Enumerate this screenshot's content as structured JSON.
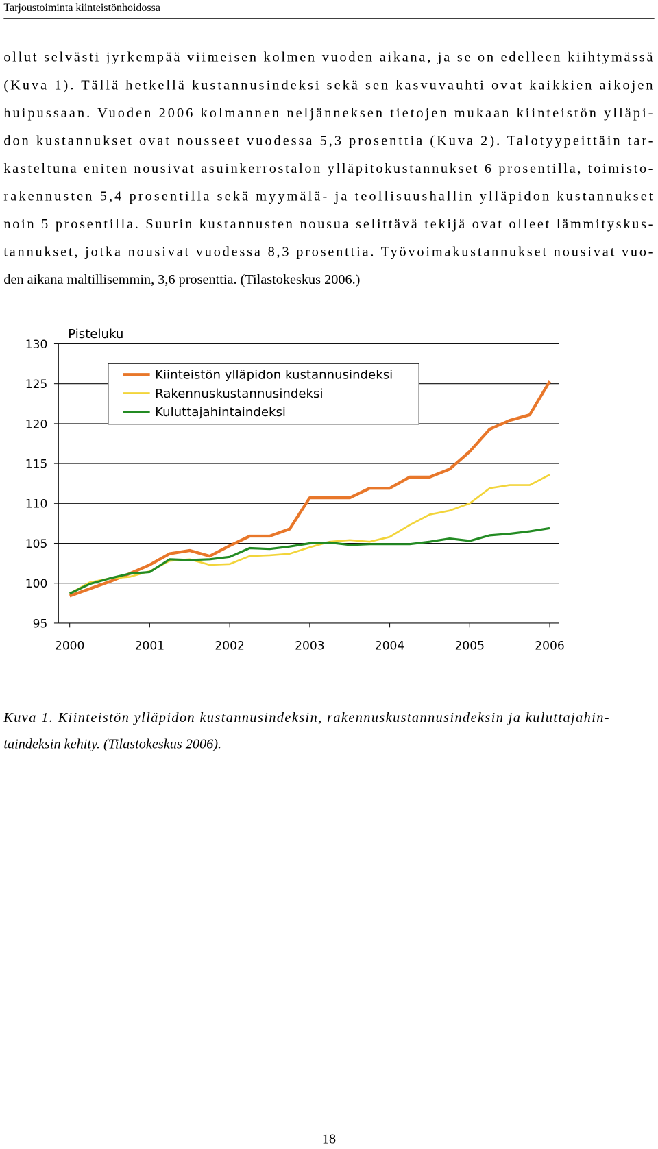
{
  "header": "Tarjoustoiminta kiinteistönhoidossa",
  "paragraph": [
    "ollut selvästi jyrkempää viimeisen kolmen vuoden aikana, ja se on edelleen kiihtymässä",
    "(Kuva 1). Tällä hetkellä kustannusindeksi sekä sen kasvuvauhti ovat kaikkien aikojen",
    "huipussaan. Vuoden 2006 kolmannen neljänneksen tietojen mukaan kiinteistön ylläpi-",
    "don kustannukset ovat nousseet vuodessa 5,3 prosenttia (Kuva 2). Talotyypeittäin tar-",
    "kasteltuna eniten nousivat asuinkerrostalon ylläpitokustannukset 6 prosentilla, toimisto-",
    "rakennusten 5,4 prosentilla sekä myymälä- ja teollisuushallin ylläpidon kustannukset",
    "noin 5 prosentilla. Suurin kustannusten nousua selittävä tekijä ovat olleet lämmityskus-",
    "tannukset, jotka nousivat vuodessa 8,3 prosenttia. Työvoimakustannukset nousivat vuo-",
    "den aikana maltillisemmin, 3,6 prosenttia. (Tilastokeskus 2006.)"
  ],
  "chart_data": {
    "type": "line",
    "y_label": "Pisteluku",
    "x": [
      2000,
      2000.25,
      2000.5,
      2000.75,
      2001,
      2001.25,
      2001.5,
      2001.75,
      2002,
      2002.25,
      2002.5,
      2002.75,
      2003,
      2003.25,
      2003.5,
      2003.75,
      2004,
      2004.25,
      2004.5,
      2004.75,
      2005,
      2005.25,
      2005.5,
      2005.75,
      2006
    ],
    "xlim": [
      1999.86,
      2006.12
    ],
    "xticks": [
      2000,
      2001,
      2002,
      2003,
      2004,
      2005,
      2006
    ],
    "ylim": [
      95,
      130
    ],
    "yticks": [
      95,
      100,
      105,
      110,
      115,
      120,
      125,
      130
    ],
    "grid": true,
    "series": [
      {
        "name": "Kiinteistön ylläpidon kustannusindeksi",
        "color": "#e8772a",
        "values": [
          98.4,
          99.3,
          100.2,
          101.2,
          102.3,
          103.7,
          104.1,
          103.4,
          104.7,
          105.9,
          105.9,
          106.8,
          110.7,
          110.7,
          110.7,
          111.9,
          111.9,
          113.3,
          113.3,
          114.3,
          116.5,
          119.3,
          120.4,
          121.1,
          125.3
        ]
      },
      {
        "name": "Rakennuskustannusindeksi",
        "color": "#f2d43a",
        "values": [
          98.7,
          100.1,
          100.6,
          100.8,
          101.5,
          102.8,
          103.0,
          102.3,
          102.4,
          103.4,
          103.5,
          103.7,
          104.5,
          105.2,
          105.4,
          105.2,
          105.8,
          107.3,
          108.6,
          109.1,
          110.0,
          111.9,
          112.3,
          112.3,
          113.6
        ]
      },
      {
        "name": "Kuluttajahintaindeksi",
        "color": "#238b23",
        "values": [
          98.7,
          99.9,
          100.6,
          101.2,
          101.4,
          103.0,
          102.9,
          103.0,
          103.3,
          104.4,
          104.3,
          104.6,
          105.0,
          105.1,
          104.8,
          104.9,
          104.9,
          104.9,
          105.2,
          105.6,
          105.3,
          106.0,
          106.2,
          106.5,
          106.9
        ]
      }
    ]
  },
  "caption": [
    "Kuva 1. Kiinteistön ylläpidon kustannusindeksin, rakennuskustannusindeksin ja kuluttajahin-",
    "taindeksin kehity. (Tilastokeskus 2006)."
  ],
  "page_number": "18"
}
